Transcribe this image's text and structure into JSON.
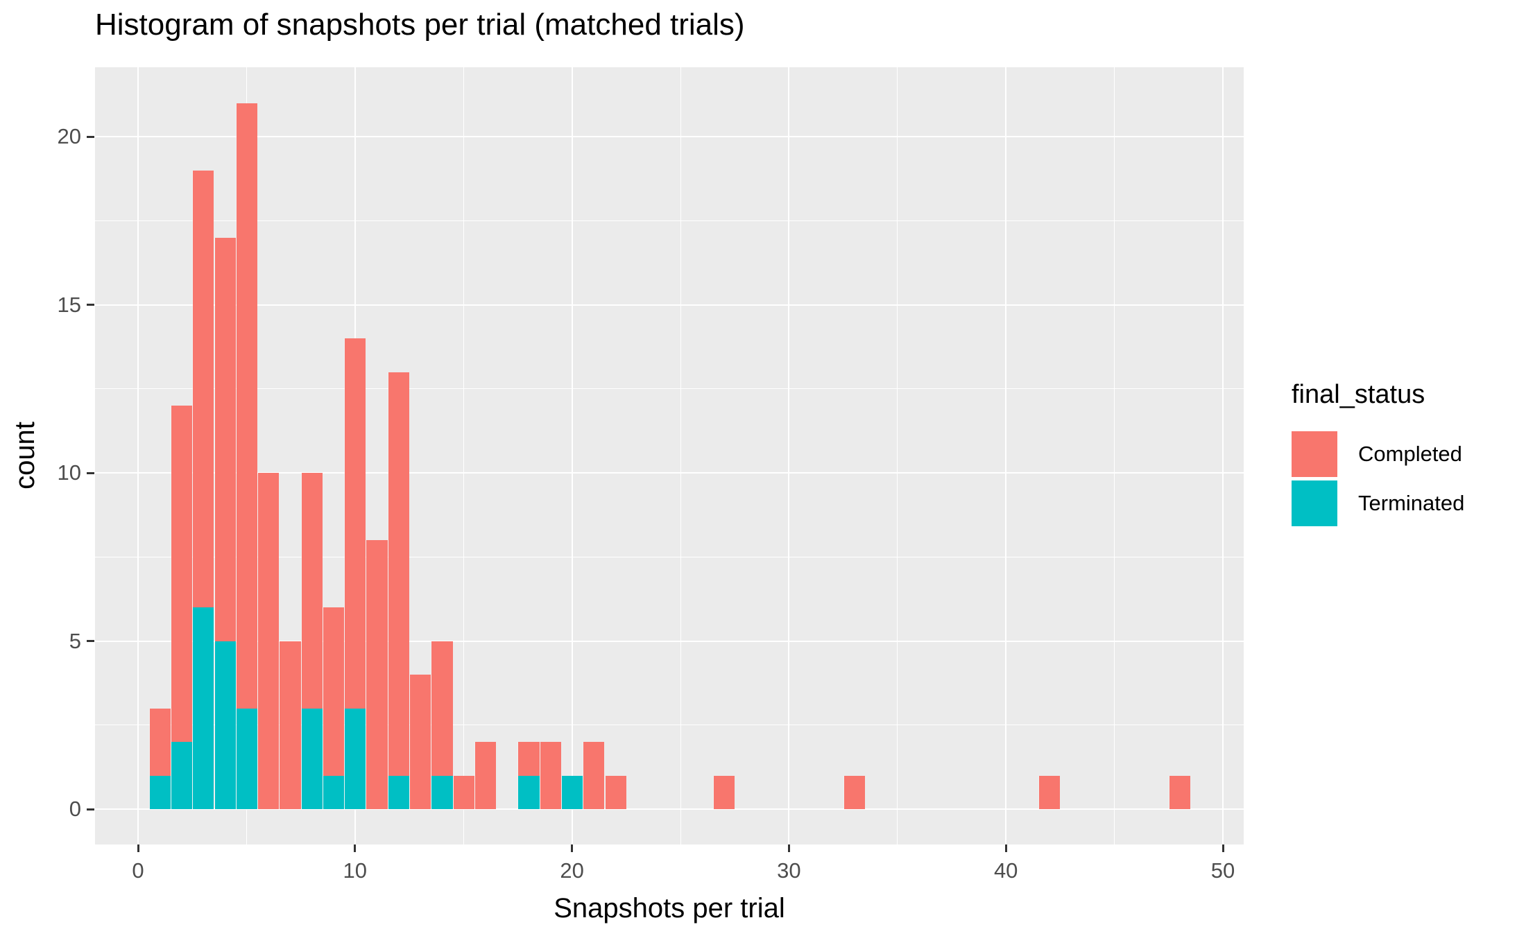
{
  "title": "Histogram of snapshots per trial (matched trials)",
  "x_axis": {
    "label": "Snapshots per trial",
    "ticks": [
      0,
      10,
      20,
      30,
      40,
      50
    ],
    "minor_ticks": [
      5,
      15,
      25,
      35,
      45
    ]
  },
  "y_axis": {
    "label": "count",
    "ticks": [
      0,
      5,
      10,
      15,
      20
    ],
    "minor_ticks": [
      2.5,
      7.5,
      12.5,
      17.5
    ]
  },
  "legend": {
    "title": "final_status",
    "entries": [
      {
        "label": "Completed",
        "color": "#F8766D"
      },
      {
        "label": "Terminated",
        "color": "#00BFC4"
      }
    ]
  },
  "colors": {
    "completed": "#F8766D",
    "terminated": "#00BFC4",
    "panel_background": "#EBEBEB",
    "gridline": "#FFFFFF",
    "tick_label": "#4D4D4D",
    "tick_mark": "#333333",
    "text": "#000000"
  },
  "chart_data": {
    "type": "bar",
    "subtype": "stacked-histogram",
    "title": "Histogram of snapshots per trial (matched trials)",
    "xlabel": "Snapshots per trial",
    "ylabel": "count",
    "binwidth": 1,
    "bin_centers": [
      1,
      2,
      3,
      4,
      5,
      6,
      7,
      8,
      9,
      10,
      11,
      12,
      13,
      14,
      15,
      16,
      17,
      18,
      19,
      20,
      21,
      22,
      27,
      33,
      42,
      48
    ],
    "series": [
      {
        "name": "Completed",
        "color": "#F8766D",
        "values": [
          2,
          10,
          13,
          12,
          18,
          10,
          5,
          7,
          5,
          11,
          8,
          12,
          4,
          4,
          1,
          2,
          0,
          1,
          2,
          0,
          2,
          1,
          1,
          1,
          1,
          1
        ]
      },
      {
        "name": "Terminated",
        "color": "#00BFC4",
        "values": [
          1,
          2,
          6,
          5,
          3,
          0,
          0,
          3,
          1,
          3,
          0,
          1,
          0,
          1,
          0,
          0,
          0,
          1,
          0,
          1,
          0,
          0,
          0,
          0,
          0,
          0
        ]
      }
    ],
    "stack_order_bottom_to_top": [
      "Terminated",
      "Completed"
    ],
    "totals": [
      3,
      12,
      19,
      17,
      21,
      10,
      5,
      10,
      6,
      14,
      8,
      13,
      4,
      5,
      1,
      2,
      0,
      2,
      2,
      1,
      2,
      1,
      1,
      1,
      1,
      1
    ],
    "x_ticks": [
      0,
      10,
      20,
      30,
      40,
      50
    ],
    "y_ticks": [
      0,
      5,
      10,
      15,
      20
    ],
    "xlim": [
      -1.9,
      50.9
    ],
    "ylim": [
      -1.05,
      22.05
    ],
    "grid": true,
    "legend_position": "right"
  }
}
